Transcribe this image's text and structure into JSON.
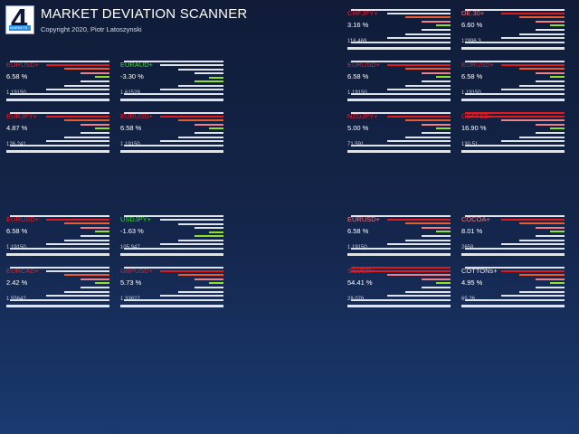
{
  "header": {
    "logo_text": "4",
    "logo_subtext": "MARKETS",
    "title": "MARKET DEVIATION SCANNER",
    "copyright": "Copyright 2020, Piotr Latoszynski"
  },
  "colors": {
    "positive_name": "#e0202a",
    "negative_name": "#3cd23a",
    "pink_name": "#f07880",
    "neutral_name": "#e8e8e8",
    "bar_grey": "#dfe3ea",
    "bar_red": "#e01a1a",
    "bar_orange": "#f05a2a",
    "bar_pink": "#f08088",
    "bar_green": "#8ee02a"
  },
  "instruments": [
    {
      "symbol": "EURUSD+",
      "deviation": "6.58 %",
      "price": "1.19150",
      "name_color": "red"
    },
    {
      "symbol": "EURAUD+",
      "deviation": "-3.30 %",
      "price": "1.61529",
      "name_color": "green"
    },
    {
      "symbol": "EURJPY+",
      "deviation": "4.87 %",
      "price": "126.241",
      "name_color": "red"
    },
    {
      "symbol": "EURUSD+",
      "deviation": "6.58 %",
      "price": "1.19150",
      "name_color": "red"
    },
    {
      "symbol": "CHFJPY+",
      "deviation": "3.16 %",
      "price": "116.469",
      "name_color": "red"
    },
    {
      "symbol": "DE.30+",
      "deviation": "6.60 %",
      "price": "12996.3",
      "name_color": "pink"
    },
    {
      "symbol": "EURUSD+",
      "deviation": "6.58 %",
      "price": "1.19150",
      "name_color": "red"
    },
    {
      "symbol": "EURUSD+",
      "deviation": "6.58 %",
      "price": "1.19150",
      "name_color": "red"
    },
    {
      "symbol": "NZDJPY+",
      "deviation": "5.00 %",
      "price": "71.591",
      "name_color": "red"
    },
    {
      "symbol": "COFFEE+",
      "deviation": "16.90 %",
      "price": "130.51",
      "name_color": "red"
    },
    {
      "symbol": "EURUSD+",
      "deviation": "6.58 %",
      "price": "1.19150",
      "name_color": "red"
    },
    {
      "symbol": "USDJPY+",
      "deviation": "-1.63 %",
      "price": "105.947",
      "name_color": "green"
    },
    {
      "symbol": "EURCAD+",
      "deviation": "2.42 %",
      "price": "1.55642",
      "name_color": "red"
    },
    {
      "symbol": "GBPUSD+",
      "deviation": "5.73 %",
      "price": "1.33827",
      "name_color": "red"
    },
    {
      "symbol": "EURUSD+",
      "deviation": "6.58 %",
      "price": "1.19150",
      "name_color": "pink"
    },
    {
      "symbol": "COCOA+",
      "deviation": "8.01 %",
      "price": "2658",
      "name_color": "pink"
    },
    {
      "symbol": "SILVER+",
      "deviation": "54.41 %",
      "price": "28.076",
      "name_color": "red"
    },
    {
      "symbol": "COTTONs+",
      "deviation": "4.95 %",
      "price": "65.26",
      "name_color": "neutral"
    }
  ]
}
